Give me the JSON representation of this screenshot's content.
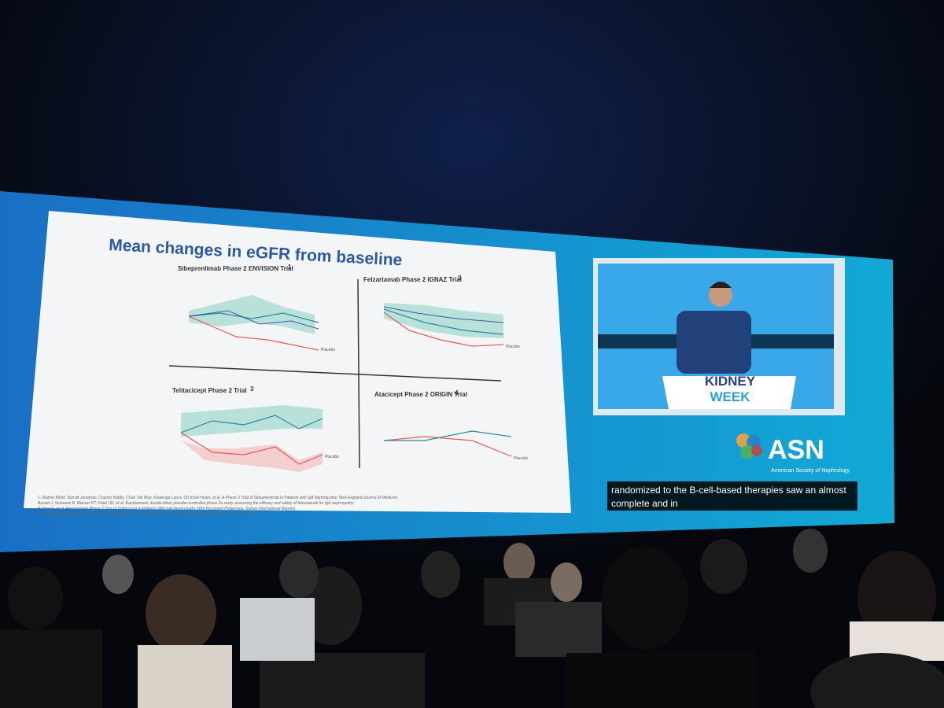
{
  "slide": {
    "title": "Mean changes in eGFR from baseline",
    "panels": [
      {
        "title": "Sibeprenlimab Phase 2 ENVISION Trial",
        "ref": "1",
        "legend": "Placebo"
      },
      {
        "title": "Felzartamab Phase 2 IGNAZ Trial",
        "ref": "2",
        "legend": "Placebo"
      },
      {
        "title": "Telitacicept Phase 2 Trial",
        "ref": "3",
        "legend": "Placebo"
      },
      {
        "title": "Atacicept Phase 2 ORIGIN Trial",
        "ref": "4",
        "legend": "Placebo"
      }
    ],
    "references": [
      "1. Mathur Mohit, Barratt Jonathan, Chacko Bobby, Chan Tak Mao, Kooienga Laura, Oh Kook-Hwan, et al. A Phase 2 Trial of Sibeprenlimab in Patients with IgA Nephropathy. New England Journal of Medicine.",
      "Barratt J, Schwartz B, Manser PT, Patel UD, et al. Randomized, double-blind, placebo-controlled phase 2a study assessing the efficacy and safety of felzartamab for IgA nephropathy.",
      "P, Xing G, et al. Randomized Phase 2 Trial of Telitacicept in Patients With IgA Nephropathy With Persistent Proteinuria. Kidney International Reports.",
      "randomized, double-blind, placebo-controlled, clinical trial of atacicept for treatment of IgA nephropathy. Kidney International."
    ]
  },
  "video": {
    "podium_line1": "KIDNEY",
    "podium_line2": "WEEK"
  },
  "logo": {
    "name": "ASN",
    "subtitle": "American Society of Nephrology"
  },
  "caption": [
    "randomized to the B-cell-based therapies saw an almost",
    "complete and in"
  ]
}
